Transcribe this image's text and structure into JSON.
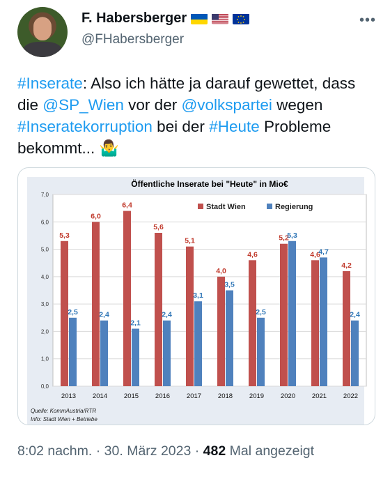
{
  "author": {
    "name": "F. Habersberger",
    "handle": "@FHabersberger",
    "flags": [
      "flag-ukraine",
      "flag-usa",
      "flag-eu"
    ]
  },
  "tweet": {
    "segments": [
      {
        "t": "#Inserate",
        "link": true
      },
      {
        "t": ": Also ich hätte ja darauf gewettet, dass die ",
        "link": false
      },
      {
        "t": "@SP_Wien",
        "link": true
      },
      {
        "t": " vor der ",
        "link": false
      },
      {
        "t": "@volkspartei",
        "link": true
      },
      {
        "t": " wegen ",
        "link": false
      },
      {
        "t": "#Inseratekorruption",
        "link": true
      },
      {
        "t": " bei der ",
        "link": false
      },
      {
        "t": "#Heute",
        "link": true
      },
      {
        "t": " Probleme bekommt... ",
        "link": false
      }
    ],
    "emoji": "🤷‍♂️"
  },
  "chart_data": {
    "type": "bar",
    "title": "Öffentliche Inserate bei \"Heute\" in Mio€",
    "categories": [
      "2013",
      "2014",
      "2015",
      "2016",
      "2017",
      "2018",
      "2019",
      "2020",
      "2021",
      "2022"
    ],
    "series": [
      {
        "name": "Stadt Wien",
        "color": "#c0504d",
        "labelColor": "#c0392b",
        "values": [
          5.3,
          6.0,
          6.4,
          5.6,
          5.1,
          4.0,
          4.6,
          5.2,
          4.6,
          4.2
        ],
        "labels": [
          "5,3",
          "6,0",
          "6,4",
          "5,6",
          "5,1",
          "4,0",
          "4,6",
          "5,2",
          "4,6",
          "4,2"
        ]
      },
      {
        "name": "Regierung",
        "color": "#4f81bd",
        "labelColor": "#2e75b6",
        "values": [
          2.5,
          2.4,
          2.1,
          2.4,
          3.1,
          3.5,
          2.5,
          5.3,
          4.7,
          2.4
        ],
        "labels": [
          "2,5",
          "2,4",
          "2,1",
          "2,4",
          "3,1",
          "3,5",
          "2,5",
          "5,3",
          "4,7",
          "2,4"
        ]
      }
    ],
    "ylim": [
      0,
      7
    ],
    "yticks": [
      "0,0",
      "1,0",
      "2,0",
      "3,0",
      "4,0",
      "5,0",
      "6,0",
      "7,0"
    ],
    "legend": "top-right",
    "notes": [
      "Quelle: KommAustria/RTR",
      "Info: Stadt Wien + Betriebe"
    ]
  },
  "meta": {
    "time": "8:02 nachm.",
    "sep1": " · ",
    "date": "30. März 2023",
    "sep2": " · ",
    "views": "482",
    "views_label": " Mal angezeigt"
  }
}
